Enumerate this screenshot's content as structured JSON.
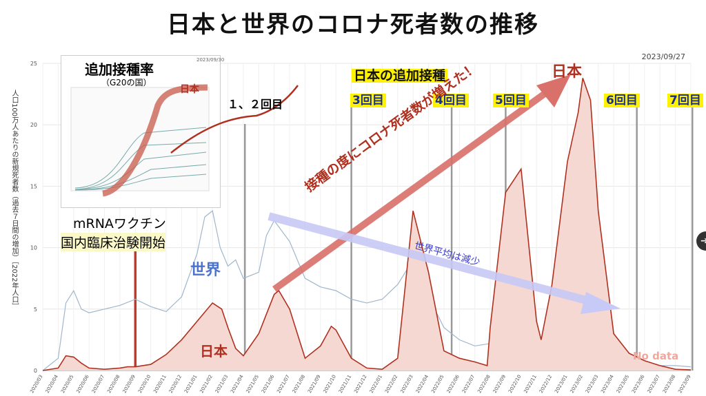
{
  "title": "日本と世界のコロナ死者数の推移",
  "date_stamp": "2023/09/27",
  "y_axis_label": "人口100万人あたりの新規死者数（過去７日間の増加）［2022年人口］",
  "annotations": {
    "inset_title": "追加接種率",
    "inset_sub": "（G20の国）",
    "inset_japan": "日本",
    "inset_date": "2023/09/30",
    "dose12": "１、２回目",
    "booster_header": "日本の追加接種",
    "dose3": "3回目",
    "dose4": "4回目",
    "dose5": "5回目",
    "dose6": "6回目",
    "dose7": "7回目",
    "peak_japan": "日本",
    "mrna1": "mRNAワクチン",
    "mrna2": "国内臨床治験開始",
    "world": "世界",
    "japan_curve": "日本",
    "arrow_up": "接種の度にコロナ死者数が増えた！",
    "arrow_down": "世界平均は減少",
    "no_data": "No data"
  },
  "colors": {
    "japan": "#b03020",
    "japan_fill": "#f6d8d2",
    "world": "#9fb6cc",
    "arrow_red": "#d9706a",
    "arrow_blue": "#c7c9f6",
    "highlight": "#fff200"
  },
  "chart_data": {
    "type": "area",
    "title": "日本と世界のコロナ死者数の推移",
    "ylabel": "人口100万人あたりの新規死者数（過去７日間の増加）［2022年人口］",
    "ylim": [
      0,
      25
    ],
    "yticks": [
      0,
      5,
      10,
      15,
      20,
      25
    ],
    "x_ticks": [
      "2020/03",
      "2020/04",
      "2020/05",
      "2020/06",
      "2020/07",
      "2020/08",
      "2020/09",
      "2020/10",
      "2020/11",
      "2020/12",
      "2021/01",
      "2021/02",
      "2021/03",
      "2021/04",
      "2021/05",
      "2021/06",
      "2021/07",
      "2021/08",
      "2021/09",
      "2021/10",
      "2021/11",
      "2021/12",
      "2022/01",
      "2022/02",
      "2022/03",
      "2022/04",
      "2022/05",
      "2022/06",
      "2022/07",
      "2022/08",
      "2022/09",
      "2022/10",
      "2022/11",
      "2022/12",
      "2023/01",
      "2023/02",
      "2023/03",
      "2023/04",
      "2023/05",
      "2023/06",
      "2023/07",
      "2023/08",
      "2023/09"
    ],
    "series": [
      {
        "name": "日本",
        "x": [
          0,
          1,
          1.5,
          2,
          2.5,
          3,
          4,
          5,
          5.5,
          6,
          7,
          8,
          9,
          10,
          11,
          11.6,
          12,
          12.5,
          13,
          14,
          15,
          15.3,
          16,
          17,
          18,
          18.7,
          19,
          20,
          21,
          22,
          23,
          23.5,
          24,
          25,
          26,
          27,
          28,
          28.8,
          29,
          30,
          31,
          32,
          32.3,
          33,
          34,
          34.7,
          35,
          35.5,
          36,
          37,
          38,
          39,
          40,
          41,
          42
        ],
        "values": [
          0,
          0.2,
          1.2,
          1.1,
          0.6,
          0.2,
          0.1,
          0.2,
          0.3,
          0.3,
          0.5,
          1.3,
          2.5,
          4.0,
          5.5,
          5.0,
          3.5,
          1.8,
          1.2,
          3.0,
          6.2,
          6.5,
          5.0,
          1.0,
          2.0,
          3.6,
          3.3,
          1.0,
          0.2,
          0.1,
          1.0,
          7.0,
          13.0,
          8.0,
          1.6,
          1.0,
          0.7,
          0.4,
          3.5,
          14.5,
          16.4,
          4.0,
          2.5,
          7.0,
          17.0,
          21.0,
          23.8,
          22.0,
          13.0,
          3.0,
          1.4,
          0.8,
          0.4,
          0.1,
          0.05
        ]
      },
      {
        "name": "世界",
        "x": [
          0,
          1,
          1.5,
          2,
          2.5,
          3,
          4,
          5,
          6,
          7,
          8,
          9,
          10,
          10.5,
          11,
          11.5,
          12,
          12.5,
          13,
          14,
          14.5,
          15,
          16,
          17,
          18,
          19,
          20,
          21,
          22,
          23,
          24,
          25,
          26,
          27,
          28,
          29,
          30,
          31,
          32,
          33,
          34,
          35,
          35.5,
          36,
          37,
          38,
          39,
          40,
          41,
          42
        ],
        "values": [
          0,
          1.0,
          5.5,
          6.5,
          5.0,
          4.7,
          5.0,
          5.3,
          5.8,
          5.2,
          4.8,
          6.0,
          9.5,
          12.5,
          13.0,
          10.0,
          8.5,
          9.0,
          7.5,
          8.0,
          11.0,
          12.2,
          10.5,
          7.5,
          6.8,
          6.5,
          5.8,
          5.5,
          5.8,
          7.0,
          9.0,
          6.0,
          3.5,
          2.5,
          2.0,
          2.2,
          2.4,
          2.0,
          2.0,
          1.8,
          1.5,
          2.5,
          5.3,
          2.0,
          0.9,
          0.6,
          0.5,
          0.4,
          0.4,
          0.3
        ]
      }
    ],
    "dose_markers": [
      {
        "label": "3回目",
        "x": 20
      },
      {
        "label": "4回目",
        "x": 26.5
      },
      {
        "label": "5回目",
        "x": 30
      },
      {
        "label": "6回目",
        "x": 38.5
      },
      {
        "label": "7回目",
        "x": 42.1
      }
    ],
    "other_markers": [
      {
        "label": "mRNAワクチン 国内臨床治験開始",
        "x": 6
      },
      {
        "label": "１、２回目",
        "x": 13.1
      }
    ]
  }
}
